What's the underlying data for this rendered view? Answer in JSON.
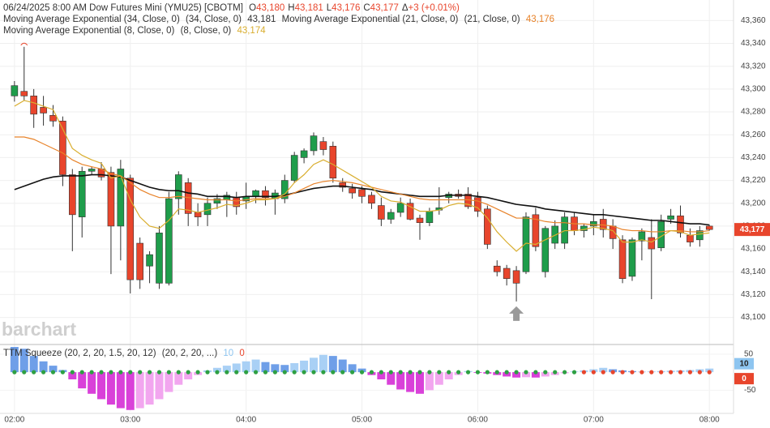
{
  "chart_data": {
    "type": "candlestick",
    "title": "06/24/2025  8:00 AM Dow Futures Mini (YMU25) [CBOTM]",
    "quote": [
      {
        "key": "O",
        "text": "43,180"
      },
      {
        "key": "H",
        "text": "43,181"
      },
      {
        "key": "L",
        "text": "43,176"
      },
      {
        "key": "C",
        "text": "43,177"
      },
      {
        "key": "Δ",
        "text": "+3 (+0.01%)"
      }
    ],
    "last_price_label": "43,177",
    "watermark": "barchart",
    "up_color": "#1f9d4b",
    "down_color": "#e8452c",
    "grid": true,
    "ylim": [
      43077,
      43378
    ],
    "yticks": [
      {
        "value": 43100,
        "label": "43,100"
      },
      {
        "value": 43120,
        "label": "43,120"
      },
      {
        "value": 43140,
        "label": "43,140"
      },
      {
        "value": 43160,
        "label": "43,160"
      },
      {
        "value": 43180,
        "label": "43,180"
      },
      {
        "value": 43200,
        "label": "43,200"
      },
      {
        "value": 43220,
        "label": "43,220"
      },
      {
        "value": 43240,
        "label": "43,240"
      },
      {
        "value": 43260,
        "label": "43,260"
      },
      {
        "value": 43280,
        "label": "43,280"
      },
      {
        "value": 43300,
        "label": "43,300"
      },
      {
        "value": 43320,
        "label": "43,320"
      },
      {
        "value": 43340,
        "label": "43,340"
      },
      {
        "value": 43360,
        "label": "43,360"
      }
    ],
    "xlim": [
      -1.5,
      74.5
    ],
    "xticks": [
      {
        "value": 0,
        "label": "02:00"
      },
      {
        "value": 12,
        "label": "03:00"
      },
      {
        "value": 24,
        "label": "04:00"
      },
      {
        "value": 36,
        "label": "05:00"
      },
      {
        "value": 48,
        "label": "06:00"
      },
      {
        "value": 60,
        "label": "07:00"
      },
      {
        "value": 72,
        "label": "08:00"
      }
    ],
    "open": [
      43294,
      43298,
      43294,
      43284,
      43277,
      43272,
      43225,
      43188,
      43228,
      43230,
      43227,
      43180,
      43222,
      43165,
      43145,
      43130,
      43130,
      43204,
      43218,
      43192,
      43190,
      43200,
      43203,
      43205,
      43202,
      43206,
      43211,
      43204,
      43204,
      43220,
      43240,
      43246,
      43254,
      43250,
      43218,
      43213,
      43212,
      43207,
      43198,
      43186,
      43192,
      43200,
      43187,
      43183,
      43194,
      43205,
      43208,
      43208,
      43205,
      43195,
      43145,
      43143,
      43141,
      43140,
      43190,
      43140,
      43165,
      43165,
      43188,
      43176,
      43180,
      43186,
      43180,
      43168,
      43136,
      43167,
      43170,
      43161,
      43186,
      43189,
      43172,
      43168,
      43180
    ],
    "high": [
      43307,
      43337,
      43300,
      43294,
      43286,
      43276,
      43230,
      43232,
      43232,
      43236,
      43232,
      43238,
      43225,
      43170,
      43158,
      43180,
      43210,
      43228,
      43222,
      43200,
      43205,
      43208,
      43210,
      43210,
      43218,
      43212,
      43215,
      43212,
      43225,
      43245,
      43248,
      43262,
      43258,
      43254,
      43222,
      43217,
      43215,
      43210,
      43205,
      43195,
      43205,
      43204,
      43190,
      43196,
      43214,
      43210,
      43212,
      43214,
      43210,
      43198,
      43150,
      43146,
      43145,
      43192,
      43196,
      43180,
      43185,
      43192,
      43192,
      43182,
      43190,
      43195,
      43186,
      43172,
      43170,
      43178,
      43186,
      43190,
      43195,
      43198,
      43178,
      43180,
      43181
    ],
    "low": [
      43289,
      43290,
      43266,
      43268,
      43267,
      43215,
      43158,
      43170,
      43225,
      43220,
      43138,
      43150,
      43121,
      43125,
      43130,
      43125,
      43128,
      43190,
      43180,
      43180,
      43180,
      43195,
      43188,
      43190,
      43195,
      43200,
      43198,
      43190,
      43200,
      43218,
      43235,
      43242,
      43242,
      43218,
      43210,
      43204,
      43200,
      43195,
      43180,
      43182,
      43188,
      43185,
      43168,
      43180,
      43190,
      43200,
      43204,
      43195,
      43188,
      43160,
      43136,
      43128,
      43114,
      43138,
      43158,
      43135,
      43160,
      43160,
      43172,
      43170,
      43172,
      43170,
      43160,
      43130,
      43132,
      43150,
      43116,
      43158,
      43182,
      43170,
      43162,
      43162,
      43176
    ],
    "close": [
      43303,
      43294,
      43278,
      43279,
      43272,
      43225,
      43190,
      43228,
      43230,
      43223,
      43180,
      43230,
      43133,
      43133,
      43155,
      43174,
      43204,
      43225,
      43191,
      43188,
      43200,
      43204,
      43207,
      43197,
      43206,
      43211,
      43205,
      43209,
      43220,
      43242,
      43246,
      43259,
      43247,
      43222,
      43214,
      43209,
      43206,
      43200,
      43186,
      43192,
      43200,
      43186,
      43183,
      43193,
      43196,
      43208,
      43206,
      43197,
      43193,
      43164,
      43140,
      43134,
      43130,
      43188,
      43162,
      43178,
      43180,
      43188,
      43176,
      43180,
      43184,
      43177,
      43169,
      43134,
      43168,
      43175,
      43160,
      43184,
      43189,
      43174,
      43166,
      43176,
      43177
    ],
    "series": [
      {
        "name": "Moving Average Exponential (34, Close, 0)",
        "params": "(34, Close, 0)",
        "last": "43,181",
        "color": "#111111",
        "values": [
          43212,
          43215,
          43218,
          43221,
          43223,
          43224,
          43224,
          43224,
          43225,
          43225,
          43224,
          43223,
          43220,
          43217,
          43214,
          43212,
          43211,
          43211,
          43209,
          43208,
          43206,
          43206,
          43206,
          43205,
          43206,
          43206,
          43206,
          43206,
          43207,
          43209,
          43211,
          43213,
          43214,
          43215,
          43215,
          43214,
          43213,
          43212,
          43210,
          43209,
          43208,
          43207,
          43206,
          43206,
          43206,
          43207,
          43207,
          43207,
          43206,
          43205,
          43203,
          43201,
          43199,
          43198,
          43197,
          43195,
          43194,
          43193,
          43192,
          43191,
          43190,
          43190,
          43189,
          43188,
          43187,
          43186,
          43185,
          43185,
          43184,
          43183,
          43182,
          43182,
          43181
        ]
      },
      {
        "name": "Moving Average Exponential (21, Close, 0)",
        "params": "(21, Close, 0)",
        "last": "43,176",
        "color": "#e8832a",
        "values": [
          43258,
          43258,
          43256,
          43252,
          43248,
          43244,
          43238,
          43234,
          43232,
          43230,
          43226,
          43224,
          43218,
          43212,
          43208,
          43205,
          43205,
          43206,
          43205,
          43204,
          43203,
          43203,
          43203,
          43202,
          43203,
          43204,
          43204,
          43204,
          43206,
          43209,
          43213,
          43217,
          43219,
          43220,
          43219,
          43218,
          43216,
          43214,
          43212,
          43210,
          43208,
          43206,
          43204,
          43203,
          43203,
          43203,
          43203,
          43203,
          43202,
          43199,
          43195,
          43191,
          43187,
          43187,
          43186,
          43184,
          43183,
          43183,
          43182,
          43182,
          43181,
          43181,
          43180,
          43177,
          43176,
          43176,
          43175,
          43175,
          43176,
          43176,
          43175,
          43175,
          43176
        ]
      },
      {
        "name": "Moving Average Exponential (8, Close, 0)",
        "params": "(8, Close, 0)",
        "last": "43,174",
        "color": "#d9ae2f",
        "values": [
          43285,
          43290,
          43288,
          43285,
          43282,
          43265,
          43248,
          43242,
          43238,
          43235,
          43222,
          43224,
          43203,
          43188,
          43180,
          43178,
          43185,
          43195,
          43194,
          43192,
          43194,
          43196,
          43199,
          43198,
          43200,
          43203,
          43203,
          43204,
          43208,
          43218,
          43225,
          43234,
          43238,
          43234,
          43229,
          43224,
          43219,
          43214,
          43206,
          43202,
          43201,
          43197,
          43193,
          43193,
          43194,
          43198,
          43200,
          43199,
          43196,
          43187,
          43175,
          43166,
          43158,
          43165,
          43164,
          43168,
          43172,
          43176,
          43176,
          43177,
          43179,
          43178,
          43176,
          43166,
          43166,
          43168,
          43166,
          43171,
          43176,
          43175,
          43172,
          43173,
          43174
        ]
      }
    ],
    "indicator": {
      "name": "TTM Squeeze (20, 2, 20, 1.5, 20, 12)",
      "params": "(20, 2, 20, ...)",
      "hist_label": "10",
      "hist_label_color": "#8ec5f0",
      "squeeze_label": "0",
      "squeeze_label_color": "#e8452c",
      "ylim": [
        -110,
        70
      ],
      "yticks": [
        -50,
        50
      ],
      "histogram": {
        "values": [
          70,
          65,
          45,
          30,
          18,
          6,
          -20,
          -45,
          -60,
          -75,
          -90,
          -100,
          -105,
          -100,
          -90,
          -75,
          -55,
          -35,
          -20,
          -8,
          5,
          12,
          18,
          24,
          30,
          35,
          28,
          22,
          20,
          25,
          32,
          40,
          48,
          45,
          35,
          22,
          10,
          -8,
          -20,
          -35,
          -48,
          -55,
          -60,
          -50,
          -35,
          -20,
          -8,
          3,
          -2,
          -4,
          -8,
          -12,
          -15,
          -14,
          -15,
          -12,
          -8,
          -3,
          2,
          5,
          8,
          12,
          8,
          5,
          3,
          1,
          2,
          3,
          4,
          5,
          6,
          8,
          10
        ],
        "colors": [
          "#6f9fe8",
          "#6f9fe8",
          "#6f9fe8",
          "#6f9fe8",
          "#6f9fe8",
          "#6f9fe8",
          "#d941d9",
          "#d941d9",
          "#d941d9",
          "#d941d9",
          "#d941d9",
          "#d941d9",
          "#d941d9",
          "#f2a6ef",
          "#f2a6ef",
          "#f2a6ef",
          "#f2a6ef",
          "#f2a6ef",
          "#f2a6ef",
          "#f2a6ef",
          "#a9d0f5",
          "#a9d0f5",
          "#a9d0f5",
          "#a9d0f5",
          "#a9d0f5",
          "#a9d0f5",
          "#6f9fe8",
          "#6f9fe8",
          "#6f9fe8",
          "#a9d0f5",
          "#a9d0f5",
          "#a9d0f5",
          "#a9d0f5",
          "#6f9fe8",
          "#6f9fe8",
          "#6f9fe8",
          "#6f9fe8",
          "#d941d9",
          "#d941d9",
          "#d941d9",
          "#d941d9",
          "#d941d9",
          "#d941d9",
          "#f2a6ef",
          "#f2a6ef",
          "#f2a6ef",
          "#f2a6ef",
          "#a9d0f5",
          "#d941d9",
          "#d941d9",
          "#d941d9",
          "#d941d9",
          "#d941d9",
          "#f2a6ef",
          "#d941d9",
          "#f2a6ef",
          "#f2a6ef",
          "#f2a6ef",
          "#a9d0f5",
          "#a9d0f5",
          "#a9d0f5",
          "#a9d0f5",
          "#6f9fe8",
          "#6f9fe8",
          "#6f9fe8",
          "#6f9fe8",
          "#a9d0f5",
          "#a9d0f5",
          "#a9d0f5",
          "#a9d0f5",
          "#a9d0f5",
          "#a9d0f5",
          "#a9d0f5"
        ]
      },
      "dots": {
        "values": [
          0,
          0,
          0,
          0,
          0,
          0,
          0,
          0,
          0,
          0,
          0,
          0,
          0,
          0,
          0,
          0,
          0,
          0,
          0,
          0,
          0,
          0,
          0,
          0,
          0,
          0,
          0,
          0,
          0,
          0,
          0,
          0,
          0,
          0,
          0,
          0,
          0,
          0,
          0,
          0,
          0,
          0,
          0,
          0,
          0,
          0,
          0,
          0,
          0,
          0,
          0,
          0,
          0,
          0,
          0,
          0,
          0,
          0,
          0,
          0,
          0,
          0,
          0,
          0,
          0,
          0,
          0,
          0,
          0,
          0,
          0,
          0,
          0
        ],
        "colors": [
          "#2ea043",
          "#2ea043",
          "#2ea043",
          "#2ea043",
          "#2ea043",
          "#2ea043",
          "#2ea043",
          "#2ea043",
          "#2ea043",
          "#2ea043",
          "#2ea043",
          "#2ea043",
          "#2ea043",
          "#2ea043",
          "#2ea043",
          "#2ea043",
          "#2ea043",
          "#2ea043",
          "#2ea043",
          "#2ea043",
          "#2ea043",
          "#2ea043",
          "#2ea043",
          "#2ea043",
          "#2ea043",
          "#2ea043",
          "#2ea043",
          "#2ea043",
          "#2ea043",
          "#2ea043",
          "#2ea043",
          "#2ea043",
          "#2ea043",
          "#2ea043",
          "#2ea043",
          "#2ea043",
          "#2ea043",
          "#2ea043",
          "#2ea043",
          "#2ea043",
          "#2ea043",
          "#2ea043",
          "#2ea043",
          "#2ea043",
          "#2ea043",
          "#2ea043",
          "#2ea043",
          "#2ea043",
          "#2ea043",
          "#2ea043",
          "#2ea043",
          "#2ea043",
          "#2ea043",
          "#2ea043",
          "#2ea043",
          "#2ea043",
          "#2ea043",
          "#2ea043",
          "#2ea043",
          "#e8452c",
          "#e8452c",
          "#e8452c",
          "#e8452c",
          "#e8452c",
          "#e8452c",
          "#e8452c",
          "#e8452c",
          "#e8452c",
          "#e8452c",
          "#e8452c",
          "#e8452c",
          "#e8452c",
          "#e8452c",
          "#e8452c"
        ]
      }
    }
  }
}
